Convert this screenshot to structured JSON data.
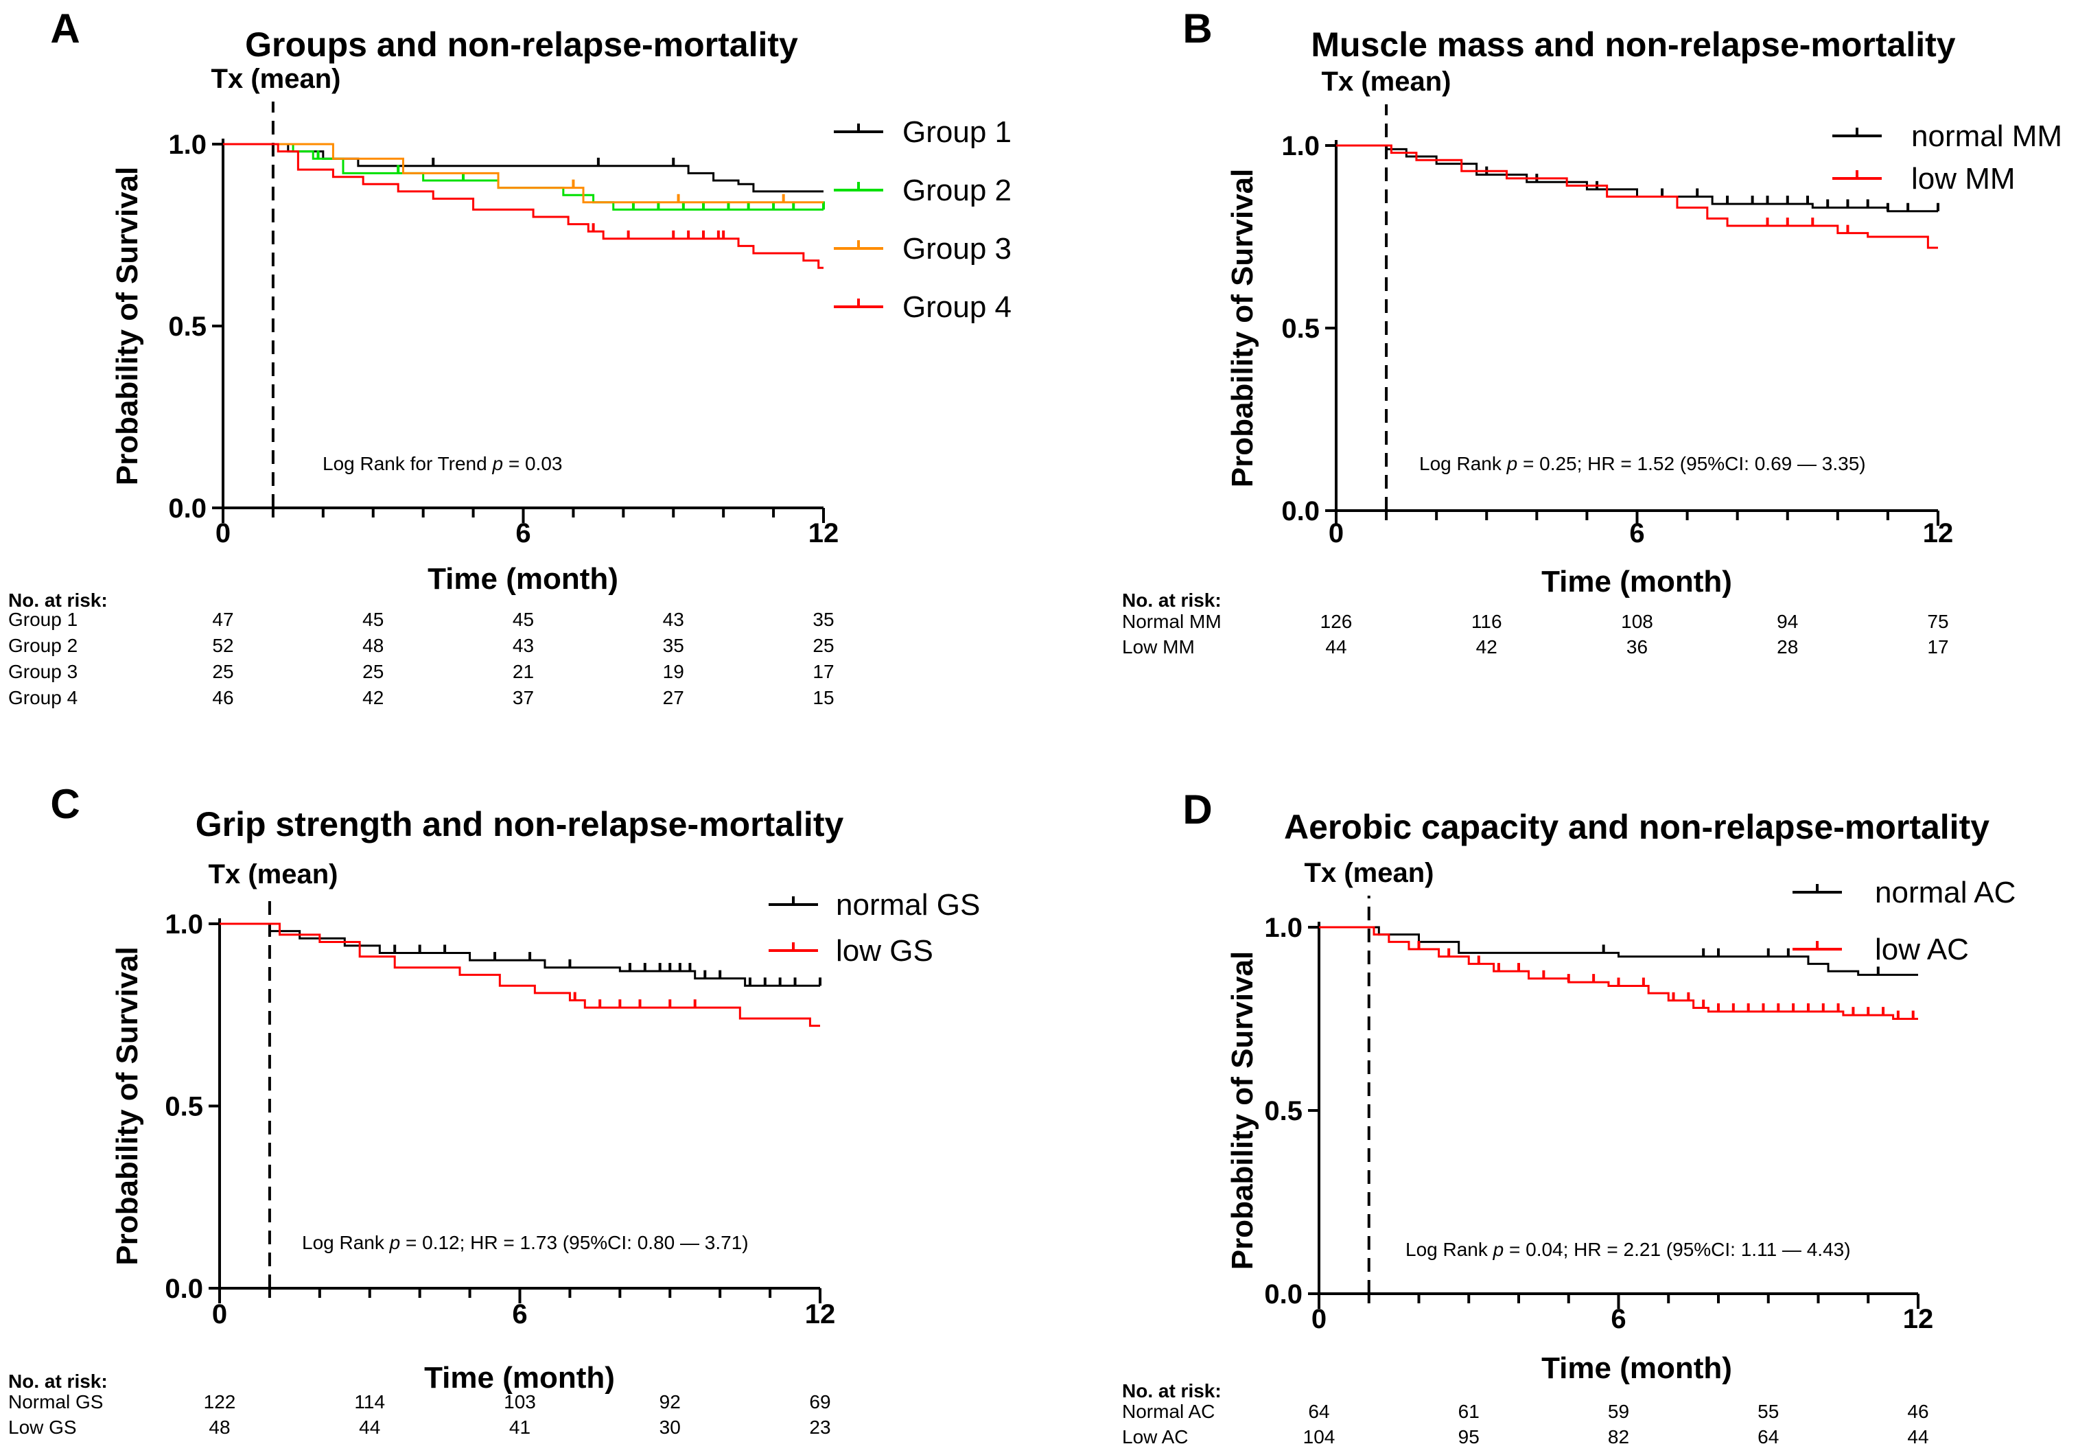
{
  "colors": {
    "black": "#000000",
    "green": "#00e000",
    "orange": "#ff8c00",
    "red": "#ff0000"
  },
  "common": {
    "ylabel": "Probability of Survival",
    "xlabel": "Time (month)",
    "tx_label": "Tx (mean)",
    "at_risk_title": "No. at risk:",
    "x_ticks": [
      "0",
      "6",
      "12"
    ],
    "y_ticks": [
      "0.0",
      "0.5",
      "1.0"
    ]
  },
  "chart_data": [
    {
      "panel": "A",
      "type": "line",
      "title": "Groups and non-relapse-mortality",
      "xlabel": "Time (month)",
      "ylabel": "Probability of Survival",
      "xlim": [
        0,
        12
      ],
      "ylim": [
        0,
        1.0
      ],
      "tx_mean_month": 1.0,
      "annotation": {
        "prefix": "Log Rank for Trend ",
        "p": "p",
        "suffix": " = 0.03"
      },
      "series": [
        {
          "name": "Group 1",
          "color": "#000000",
          "steps": [
            [
              0,
              1.0
            ],
            [
              1.3,
              0.98
            ],
            [
              2.0,
              0.96
            ],
            [
              2.7,
              0.94
            ],
            [
              9.3,
              0.92
            ],
            [
              9.8,
              0.9
            ],
            [
              10.3,
              0.89
            ],
            [
              10.6,
              0.87
            ],
            [
              12,
              0.87
            ]
          ],
          "censor": [
            4.2,
            7.5,
            9.0
          ]
        },
        {
          "name": "Group 2",
          "color": "#00e000",
          "steps": [
            [
              0,
              1.0
            ],
            [
              1.4,
              0.98
            ],
            [
              1.8,
              0.96
            ],
            [
              2.4,
              0.92
            ],
            [
              4.0,
              0.9
            ],
            [
              5.5,
              0.88
            ],
            [
              6.8,
              0.86
            ],
            [
              7.4,
              0.84
            ],
            [
              7.8,
              0.82
            ],
            [
              12,
              0.82
            ]
          ],
          "censor": [
            1.9,
            3.5,
            4.8,
            8.2,
            8.7,
            9.2,
            9.6,
            10.1,
            10.5,
            11.0,
            11.4,
            12.0
          ]
        },
        {
          "name": "Group 3",
          "color": "#ff8c00",
          "steps": [
            [
              0,
              1.0
            ],
            [
              2.2,
              0.96
            ],
            [
              3.0,
              0.96
            ],
            [
              3.6,
              0.92
            ],
            [
              5.5,
              0.88
            ],
            [
              7.2,
              0.84
            ],
            [
              12,
              0.84
            ]
          ],
          "censor": [
            7.0,
            9.1,
            11.2
          ]
        },
        {
          "name": "Group 4",
          "color": "#ff0000",
          "steps": [
            [
              0,
              1.0
            ],
            [
              1.1,
              0.98
            ],
            [
              1.5,
              0.93
            ],
            [
              2.2,
              0.91
            ],
            [
              2.8,
              0.89
            ],
            [
              3.5,
              0.87
            ],
            [
              4.2,
              0.85
            ],
            [
              5.0,
              0.82
            ],
            [
              6.2,
              0.8
            ],
            [
              6.9,
              0.78
            ],
            [
              7.3,
              0.76
            ],
            [
              7.6,
              0.74
            ],
            [
              10.3,
              0.72
            ],
            [
              10.6,
              0.7
            ],
            [
              11.6,
              0.68
            ],
            [
              11.9,
              0.66
            ],
            [
              12,
              0.66
            ]
          ],
          "censor": [
            7.4,
            8.1,
            9.0,
            9.3,
            9.6,
            9.9,
            10.0
          ]
        }
      ],
      "at_risk": {
        "times": [
          "0",
          "3",
          "6",
          "9",
          "12"
        ],
        "rows": [
          {
            "label": "Group 1",
            "values": [
              "47",
              "45",
              "45",
              "43",
              "35"
            ]
          },
          {
            "label": "Group 2",
            "values": [
              "52",
              "48",
              "43",
              "35",
              "25"
            ]
          },
          {
            "label": "Group 3",
            "values": [
              "25",
              "25",
              "21",
              "19",
              "17"
            ]
          },
          {
            "label": "Group 4",
            "values": [
              "46",
              "42",
              "37",
              "27",
              "15"
            ]
          }
        ]
      }
    },
    {
      "panel": "B",
      "type": "line",
      "title": "Muscle mass and non-relapse-mortality",
      "xlabel": "Time (month)",
      "ylabel": "Probability of Survival",
      "xlim": [
        0,
        12
      ],
      "ylim": [
        0,
        1.0
      ],
      "tx_mean_month": 1.0,
      "annotation": {
        "prefix": "Log Rank ",
        "p": "p",
        "suffix": " = 0.25; HR = 1.52 (95%CI: 0.69 — 3.35)"
      },
      "series": [
        {
          "name": "normal MM",
          "color": "#000000",
          "steps": [
            [
              0,
              1.0
            ],
            [
              1.0,
              0.99
            ],
            [
              1.4,
              0.97
            ],
            [
              2.0,
              0.95
            ],
            [
              2.8,
              0.92
            ],
            [
              3.8,
              0.9
            ],
            [
              5.0,
              0.88
            ],
            [
              6.0,
              0.86
            ],
            [
              7.5,
              0.84
            ],
            [
              9.5,
              0.83
            ],
            [
              11.0,
              0.82
            ],
            [
              12,
              0.82
            ]
          ],
          "censor": [
            3.0,
            4.0,
            5.2,
            6.5,
            7.2,
            7.8,
            8.3,
            8.6,
            9.0,
            9.4,
            9.8,
            10.2,
            10.6,
            11.0,
            11.4,
            12.0
          ]
        },
        {
          "name": "low MM",
          "color": "#ff0000",
          "steps": [
            [
              0,
              1.0
            ],
            [
              1.1,
              0.98
            ],
            [
              1.6,
              0.96
            ],
            [
              2.5,
              0.93
            ],
            [
              3.4,
              0.91
            ],
            [
              4.6,
              0.89
            ],
            [
              5.4,
              0.86
            ],
            [
              6.8,
              0.83
            ],
            [
              7.4,
              0.8
            ],
            [
              7.8,
              0.78
            ],
            [
              10.0,
              0.76
            ],
            [
              10.6,
              0.75
            ],
            [
              11.8,
              0.72
            ],
            [
              12,
              0.72
            ]
          ],
          "censor": [
            8.6,
            9.0,
            9.5,
            10.2
          ]
        }
      ],
      "at_risk": {
        "times": [
          "0",
          "3",
          "6",
          "9",
          "12"
        ],
        "rows": [
          {
            "label": "Normal MM",
            "values": [
              "126",
              "116",
              "108",
              "94",
              "75"
            ]
          },
          {
            "label": "Low MM",
            "values": [
              "44",
              "42",
              "36",
              "28",
              "17"
            ]
          }
        ]
      }
    },
    {
      "panel": "C",
      "type": "line",
      "title": "Grip strength and non-relapse-mortality",
      "xlabel": "Time (month)",
      "ylabel": "Probability of Survival",
      "xlim": [
        0,
        12
      ],
      "ylim": [
        0,
        1.0
      ],
      "tx_mean_month": 1.0,
      "annotation": {
        "prefix": "Log Rank ",
        "p": "p",
        "suffix": " = 0.12; HR = 1.73 (95%CI: 0.80 — 3.71)"
      },
      "series": [
        {
          "name": "normal GS",
          "color": "#000000",
          "steps": [
            [
              0,
              1.0
            ],
            [
              1.0,
              0.98
            ],
            [
              1.6,
              0.96
            ],
            [
              2.5,
              0.94
            ],
            [
              3.2,
              0.92
            ],
            [
              5.0,
              0.9
            ],
            [
              6.5,
              0.88
            ],
            [
              8.0,
              0.87
            ],
            [
              9.5,
              0.85
            ],
            [
              10.5,
              0.83
            ],
            [
              12,
              0.83
            ]
          ],
          "censor": [
            3.5,
            4.0,
            4.5,
            5.5,
            6.2,
            7.0,
            8.2,
            8.5,
            8.8,
            9.0,
            9.2,
            9.4,
            9.7,
            10.0,
            10.6,
            10.9,
            11.2,
            11.5,
            12.0
          ]
        },
        {
          "name": "low GS",
          "color": "#ff0000",
          "steps": [
            [
              0,
              1.0
            ],
            [
              1.2,
              0.97
            ],
            [
              2.0,
              0.95
            ],
            [
              2.8,
              0.91
            ],
            [
              3.5,
              0.88
            ],
            [
              4.8,
              0.86
            ],
            [
              5.6,
              0.83
            ],
            [
              6.3,
              0.81
            ],
            [
              7.0,
              0.79
            ],
            [
              7.3,
              0.77
            ],
            [
              10.4,
              0.74
            ],
            [
              11.8,
              0.72
            ],
            [
              12,
              0.72
            ]
          ],
          "censor": [
            7.1,
            7.6,
            8.0,
            8.4,
            9.0,
            9.5
          ]
        }
      ],
      "at_risk": {
        "times": [
          "0",
          "3",
          "6",
          "9",
          "12"
        ],
        "rows": [
          {
            "label": "Normal GS",
            "values": [
              "122",
              "114",
              "103",
              "92",
              "69"
            ]
          },
          {
            "label": "Low GS",
            "values": [
              "48",
              "44",
              "41",
              "30",
              "23"
            ]
          }
        ]
      }
    },
    {
      "panel": "D",
      "type": "line",
      "title": "Aerobic capacity and non-relapse-mortality",
      "xlabel": "Time (month)",
      "ylabel": "Probability of Survival",
      "xlim": [
        0,
        12
      ],
      "ylim": [
        0,
        1.0
      ],
      "tx_mean_month": 1.0,
      "annotation": {
        "prefix": "Log Rank ",
        "p": "p",
        "suffix": " = 0.04; HR = 2.21 (95%CI: 1.11 — 4.43)"
      },
      "series": [
        {
          "name": "normal AC",
          "color": "#000000",
          "steps": [
            [
              0,
              1.0
            ],
            [
              1.2,
              0.98
            ],
            [
              2.0,
              0.96
            ],
            [
              2.8,
              0.93
            ],
            [
              5.0,
              0.93
            ],
            [
              6.0,
              0.92
            ],
            [
              9.8,
              0.9
            ],
            [
              10.2,
              0.88
            ],
            [
              10.8,
              0.87
            ],
            [
              12,
              0.87
            ]
          ],
          "censor": [
            5.7,
            7.7,
            8.0,
            9.0,
            9.4,
            11.2
          ]
        },
        {
          "name": "low AC",
          "color": "#ff0000",
          "steps": [
            [
              0,
              1.0
            ],
            [
              1.1,
              0.98
            ],
            [
              1.4,
              0.96
            ],
            [
              1.8,
              0.94
            ],
            [
              2.4,
              0.92
            ],
            [
              3.0,
              0.9
            ],
            [
              3.5,
              0.88
            ],
            [
              4.2,
              0.86
            ],
            [
              5.0,
              0.85
            ],
            [
              5.8,
              0.84
            ],
            [
              6.6,
              0.82
            ],
            [
              7.0,
              0.8
            ],
            [
              7.5,
              0.78
            ],
            [
              7.8,
              0.77
            ],
            [
              9.0,
              0.77
            ],
            [
              10.5,
              0.76
            ],
            [
              11.5,
              0.75
            ],
            [
              12,
              0.75
            ]
          ],
          "censor": [
            2.0,
            2.6,
            3.2,
            3.6,
            4.0,
            4.5,
            5.0,
            5.5,
            6.0,
            6.5,
            7.1,
            7.4,
            7.7,
            8.0,
            8.3,
            8.6,
            8.9,
            9.2,
            9.5,
            9.8,
            10.1,
            10.4,
            10.7,
            11.0,
            11.3,
            11.6,
            11.9
          ]
        }
      ],
      "at_risk": {
        "times": [
          "0",
          "3",
          "6",
          "9",
          "12"
        ],
        "rows": [
          {
            "label": "Normal AC",
            "values": [
              "64",
              "61",
              "59",
              "55",
              "46"
            ]
          },
          {
            "label": "Low AC",
            "values": [
              "104",
              "95",
              "82",
              "64",
              "44"
            ]
          }
        ]
      }
    }
  ]
}
